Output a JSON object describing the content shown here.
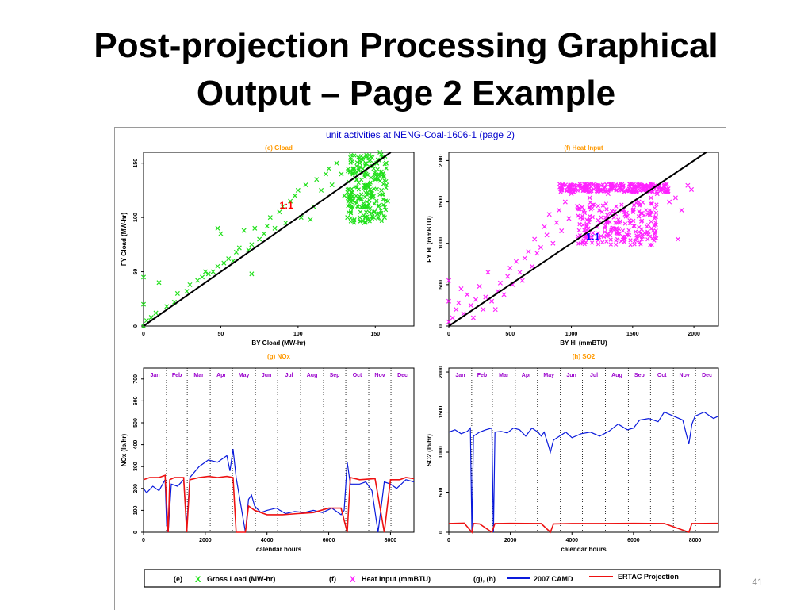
{
  "slide": {
    "title_line1": "Post-projection Processing Graphical",
    "title_line2": "Output – Page 2 Example",
    "slide_number": "41"
  },
  "figure": {
    "main_title": "unit activities at  NENG-Coal-1606-1  (page 2)",
    "title_color": "#0000cc"
  },
  "legend": {
    "e_tag": "(e)",
    "e_marker": "X",
    "e_label": "Gross Load (MW-hr)",
    "f_tag": "(f)",
    "f_marker": "X",
    "f_label": "Heat Input (mmBTU)",
    "gh_tag": "(g), (h)",
    "camd_label": "2007 CAMD",
    "ertac_label": "ERTAC Projection"
  },
  "colors": {
    "green": "#22e01c",
    "magenta": "#ff22ff",
    "blue": "#0a1adc",
    "red": "#ee1111",
    "panel_title": "#ff9900",
    "month_label": "#9900cc",
    "ratio_label_e": "#ff0000",
    "ratio_label_f": "#0000ff"
  },
  "chart_data": [
    {
      "id": "e",
      "type": "scatter",
      "title": "(e) Gload",
      "xlabel": "BY Gload (MW-hr)",
      "ylabel": "FY Gload (MW-hr)",
      "xlim": [
        0,
        175
      ],
      "ylim": [
        0,
        160
      ],
      "xticks": [
        0,
        50,
        100,
        150
      ],
      "yticks": [
        0,
        50,
        100,
        150
      ],
      "ratio_label": "1:1",
      "one_to_one_line": true,
      "series": [
        {
          "name": "Gross Load (MW-hr)",
          "marker": "x",
          "points": [
            [
              0,
              0
            ],
            [
              0,
              20
            ],
            [
              0,
              45
            ],
            [
              2,
              5
            ],
            [
              5,
              8
            ],
            [
              8,
              12
            ],
            [
              10,
              40
            ],
            [
              15,
              18
            ],
            [
              20,
              22
            ],
            [
              22,
              30
            ],
            [
              28,
              32
            ],
            [
              30,
              38
            ],
            [
              35,
              42
            ],
            [
              38,
              45
            ],
            [
              40,
              50
            ],
            [
              42,
              48
            ],
            [
              45,
              50
            ],
            [
              48,
              55
            ],
            [
              48,
              90
            ],
            [
              50,
              85
            ],
            [
              52,
              58
            ],
            [
              55,
              62
            ],
            [
              58,
              60
            ],
            [
              60,
              68
            ],
            [
              62,
              72
            ],
            [
              65,
              88
            ],
            [
              68,
              70
            ],
            [
              70,
              75
            ],
            [
              70,
              48
            ],
            [
              72,
              90
            ],
            [
              75,
              80
            ],
            [
              78,
              85
            ],
            [
              80,
              92
            ],
            [
              82,
              100
            ],
            [
              85,
              90
            ],
            [
              88,
              105
            ],
            [
              90,
              110
            ],
            [
              92,
              95
            ],
            [
              95,
              115
            ],
            [
              98,
              120
            ],
            [
              100,
              125
            ],
            [
              102,
              100
            ],
            [
              105,
              130
            ],
            [
              108,
              98
            ],
            [
              110,
              110
            ],
            [
              112,
              135
            ],
            [
              115,
              125
            ],
            [
              118,
              140
            ],
            [
              120,
              145
            ],
            [
              122,
              130
            ],
            [
              125,
              150
            ],
            [
              128,
              140
            ],
            [
              130,
              120
            ],
            [
              132,
              100
            ],
            [
              134,
              155
            ],
            [
              136,
              145
            ],
            [
              138,
              135
            ],
            [
              140,
              150
            ],
            [
              140,
              100
            ],
            [
              142,
              110
            ],
            [
              143,
              95
            ],
            [
              144,
              140
            ],
            [
              145,
              130
            ],
            [
              146,
              105
            ],
            [
              147,
              120
            ],
            [
              148,
              155
            ],
            [
              149,
              145
            ],
            [
              150,
              135
            ],
            [
              151,
              150
            ],
            [
              152,
              110
            ],
            [
              153,
              160
            ],
            [
              154,
              125
            ],
            [
              155,
              140
            ],
            [
              156,
              100
            ],
            [
              157,
              150
            ],
            [
              158,
              115
            ]
          ]
        }
      ],
      "dense_blocks": [
        {
          "x_range": [
            132,
            158
          ],
          "y_range": [
            95,
            158
          ]
        }
      ]
    },
    {
      "id": "f",
      "type": "scatter",
      "title": "(f) Heat Input",
      "xlabel": "BY HI (mmBTU)",
      "ylabel": "FY HI (mmBTU)",
      "xlim": [
        0,
        2200
      ],
      "ylim": [
        0,
        2100
      ],
      "xticks": [
        0,
        500,
        1000,
        1500,
        2000
      ],
      "yticks": [
        0,
        500,
        1000,
        1500,
        2000
      ],
      "ratio_label": "1:1",
      "one_to_one_line": true,
      "series": [
        {
          "name": "Heat Input (mmBTU)",
          "marker": "x",
          "points": [
            [
              0,
              50
            ],
            [
              0,
              300
            ],
            [
              0,
              550
            ],
            [
              30,
              100
            ],
            [
              60,
              200
            ],
            [
              80,
              280
            ],
            [
              100,
              450
            ],
            [
              120,
              150
            ],
            [
              150,
              380
            ],
            [
              180,
              250
            ],
            [
              200,
              100
            ],
            [
              220,
              320
            ],
            [
              250,
              480
            ],
            [
              280,
              200
            ],
            [
              300,
              350
            ],
            [
              320,
              650
            ],
            [
              350,
              300
            ],
            [
              380,
              200
            ],
            [
              400,
              420
            ],
            [
              420,
              520
            ],
            [
              450,
              380
            ],
            [
              480,
              600
            ],
            [
              500,
              700
            ],
            [
              520,
              500
            ],
            [
              550,
              780
            ],
            [
              580,
              650
            ],
            [
              600,
              550
            ],
            [
              620,
              820
            ],
            [
              650,
              900
            ],
            [
              680,
              720
            ],
            [
              700,
              1050
            ],
            [
              720,
              880
            ],
            [
              750,
              950
            ],
            [
              780,
              1200
            ],
            [
              800,
              1100
            ],
            [
              820,
              1350
            ],
            [
              850,
              1000
            ],
            [
              880,
              1250
            ],
            [
              900,
              1400
            ],
            [
              920,
              1150
            ],
            [
              950,
              1500
            ],
            [
              980,
              1300
            ],
            [
              1000,
              1600
            ],
            [
              1050,
              1450
            ],
            [
              1100,
              1650
            ],
            [
              1150,
              1550
            ],
            [
              1200,
              1700
            ],
            [
              1300,
              1600
            ],
            [
              1400,
              1720
            ],
            [
              1500,
              1650
            ],
            [
              1550,
              1500
            ],
            [
              1600,
              1700
            ],
            [
              1650,
              1550
            ],
            [
              1700,
              1600
            ],
            [
              1750,
              1650
            ],
            [
              1800,
              1500
            ],
            [
              1850,
              1550
            ],
            [
              1900,
              1400
            ],
            [
              1950,
              1700
            ],
            [
              1980,
              1650
            ],
            [
              1870,
              1050
            ]
          ]
        }
      ],
      "dense_blocks": [
        {
          "x_range": [
            900,
            1800
          ],
          "y_range": [
            1620,
            1720
          ]
        },
        {
          "x_range": [
            1050,
            1700
          ],
          "y_range": [
            980,
            1500
          ]
        }
      ]
    },
    {
      "id": "g",
      "type": "line",
      "title": "(g) NOx",
      "xlabel": "calendar hours",
      "ylabel": "NOx (lb/hr)",
      "xlim": [
        0,
        8760
      ],
      "ylim": [
        0,
        750
      ],
      "xticks": [
        0,
        2000,
        4000,
        6000,
        8000
      ],
      "yticks": [
        0,
        100,
        200,
        300,
        400,
        500,
        600,
        700
      ],
      "months": [
        "Jan",
        "Feb",
        "Mar",
        "Apr",
        "May",
        "Jun",
        "Jul",
        "Aug",
        "Sep",
        "Oct",
        "Nov",
        "Dec"
      ],
      "series": [
        {
          "name": "2007 CAMD",
          "x": [
            0,
            100,
            300,
            500,
            700,
            750,
            800,
            900,
            1100,
            1300,
            1400,
            1500,
            1800,
            2100,
            2400,
            2700,
            2800,
            2900,
            3000,
            3300,
            3400,
            3500,
            3600,
            3800,
            4000,
            4300,
            4600,
            4900,
            5200,
            5500,
            5800,
            6100,
            6400,
            6500,
            6600,
            6700,
            7000,
            7200,
            7400,
            7600,
            7800,
            8000,
            8200,
            8500,
            8760
          ],
          "y": [
            200,
            180,
            210,
            190,
            240,
            30,
            0,
            220,
            210,
            240,
            30,
            250,
            300,
            330,
            320,
            350,
            280,
            380,
            250,
            0,
            150,
            170,
            120,
            90,
            100,
            110,
            85,
            95,
            90,
            100,
            90,
            110,
            80,
            100,
            320,
            220,
            220,
            230,
            190,
            0,
            230,
            220,
            200,
            240,
            230
          ]
        },
        {
          "name": "ERTAC Projection",
          "x": [
            0,
            200,
            500,
            700,
            800,
            850,
            1000,
            1300,
            1400,
            1500,
            1800,
            2100,
            2400,
            2700,
            2900,
            3000,
            3300,
            3400,
            3600,
            4000,
            4500,
            5000,
            5500,
            6000,
            6400,
            6600,
            6700,
            7000,
            7500,
            7800,
            8000,
            8300,
            8500,
            8760
          ],
          "y": [
            240,
            250,
            250,
            260,
            0,
            240,
            250,
            250,
            0,
            240,
            250,
            255,
            250,
            255,
            250,
            0,
            0,
            120,
            100,
            80,
            80,
            85,
            90,
            110,
            110,
            0,
            250,
            240,
            245,
            0,
            240,
            240,
            250,
            245
          ]
        }
      ]
    },
    {
      "id": "h",
      "type": "line",
      "title": "(h) SO2",
      "xlabel": "calendar hours",
      "ylabel": "SO2 (lb/hr)",
      "xlim": [
        0,
        8760
      ],
      "ylim": [
        0,
        2050
      ],
      "xticks": [
        0,
        2000,
        4000,
        6000,
        8000
      ],
      "yticks": [
        0,
        500,
        1000,
        1500,
        2000
      ],
      "months": [
        "Jan",
        "Feb",
        "Mar",
        "Apr",
        "May",
        "Jun",
        "Jul",
        "Aug",
        "Sep",
        "Oct",
        "Nov",
        "Dec"
      ],
      "series": [
        {
          "name": "2007 CAMD",
          "x": [
            0,
            200,
            400,
            600,
            700,
            750,
            800,
            1000,
            1200,
            1400,
            1450,
            1500,
            1700,
            1900,
            2100,
            2300,
            2500,
            2700,
            2900,
            3000,
            3100,
            3300,
            3400,
            3600,
            3800,
            4000,
            4300,
            4600,
            4900,
            5200,
            5500,
            5800,
            6000,
            6200,
            6500,
            6800,
            7000,
            7300,
            7600,
            7800,
            7900,
            8000,
            8300,
            8600,
            8760
          ],
          "y": [
            1250,
            1280,
            1230,
            1260,
            1300,
            0,
            1200,
            1250,
            1280,
            1300,
            0,
            1250,
            1260,
            1240,
            1300,
            1280,
            1200,
            1300,
            1250,
            1200,
            1250,
            1000,
            1150,
            1200,
            1250,
            1180,
            1230,
            1250,
            1200,
            1260,
            1350,
            1280,
            1300,
            1400,
            1420,
            1380,
            1500,
            1450,
            1400,
            1100,
            1350,
            1450,
            1500,
            1420,
            1450
          ]
        },
        {
          "name": "ERTAC Projection",
          "x": [
            0,
            500,
            750,
            800,
            1000,
            1400,
            1500,
            2000,
            3000,
            3300,
            3400,
            4000,
            5000,
            6000,
            7000,
            7800,
            7900,
            8000,
            8760
          ],
          "y": [
            110,
            115,
            0,
            110,
            105,
            0,
            110,
            112,
            110,
            0,
            105,
            110,
            110,
            112,
            110,
            0,
            110,
            110,
            112
          ]
        }
      ]
    }
  ]
}
